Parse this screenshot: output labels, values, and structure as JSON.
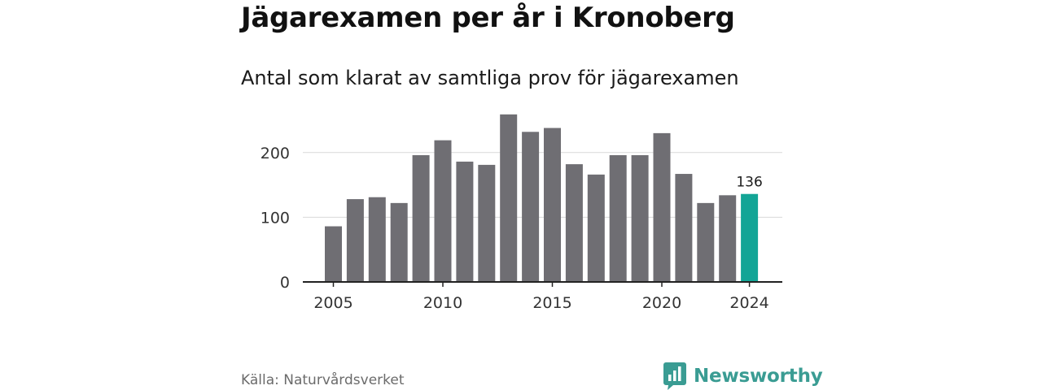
{
  "header": {
    "title": "Jägarexamen per år i Kronoberg",
    "subtitle": "Antal som klarat av samtliga prov för jägarexamen"
  },
  "footer": {
    "source": "Källa: Naturvårdsverket",
    "brand": "Newsworthy",
    "brand_icon": "bar-chart-icon"
  },
  "colors": {
    "bar": "#6f6e73",
    "highlight": "#13a596",
    "grid": "#d9d9d9",
    "axis": "#222222",
    "brand": "#3a9c93"
  },
  "chart_data": {
    "type": "bar",
    "title": "Jägarexamen per år i Kronoberg",
    "subtitle": "Antal som klarat av samtliga prov för jägarexamen",
    "x": [
      2005,
      2006,
      2007,
      2008,
      2009,
      2010,
      2011,
      2012,
      2013,
      2014,
      2015,
      2016,
      2017,
      2018,
      2019,
      2020,
      2021,
      2022,
      2023,
      2024
    ],
    "values": [
      86,
      128,
      131,
      122,
      196,
      219,
      186,
      181,
      259,
      232,
      238,
      182,
      166,
      196,
      196,
      230,
      167,
      122,
      134,
      136
    ],
    "xticks": [
      2005,
      2010,
      2015,
      2020,
      2024
    ],
    "yticks": [
      0,
      100,
      200
    ],
    "ylim": [
      0,
      260
    ],
    "grid": true,
    "highlight_x": 2024,
    "data_labels": [
      {
        "x": 2024,
        "label": "136"
      }
    ],
    "xlabel": "",
    "ylabel": ""
  }
}
